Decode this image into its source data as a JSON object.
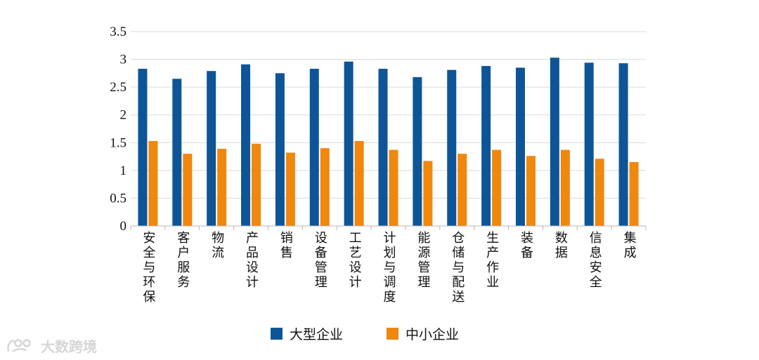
{
  "chart_data": {
    "type": "bar",
    "categories": [
      "安全与环保",
      "客户服务",
      "物流",
      "产品设计",
      "销售",
      "设备管理",
      "工艺设计",
      "计划与调度",
      "能源管理",
      "仓储与配送",
      "生产作业",
      "装备",
      "数据",
      "信息安全",
      "集成"
    ],
    "series": [
      {
        "name": "大型企业",
        "color": "#0e5597",
        "values": [
          2.83,
          2.65,
          2.79,
          2.91,
          2.75,
          2.83,
          2.96,
          2.83,
          2.68,
          2.81,
          2.88,
          2.85,
          3.03,
          2.94,
          2.93
        ]
      },
      {
        "name": "中小企业",
        "color": "#f0870e",
        "values": [
          1.53,
          1.3,
          1.39,
          1.48,
          1.32,
          1.4,
          1.53,
          1.37,
          1.17,
          1.3,
          1.37,
          1.26,
          1.37,
          1.21,
          1.15
        ]
      }
    ],
    "yticks": [
      "0",
      "0.5",
      "1",
      "1.5",
      "2",
      "2.5",
      "3",
      "3.5"
    ],
    "ylim": [
      0,
      3.5
    ],
    "grid": true,
    "legend_position": "bottom"
  },
  "watermark": {
    "text": "大数跨境"
  }
}
